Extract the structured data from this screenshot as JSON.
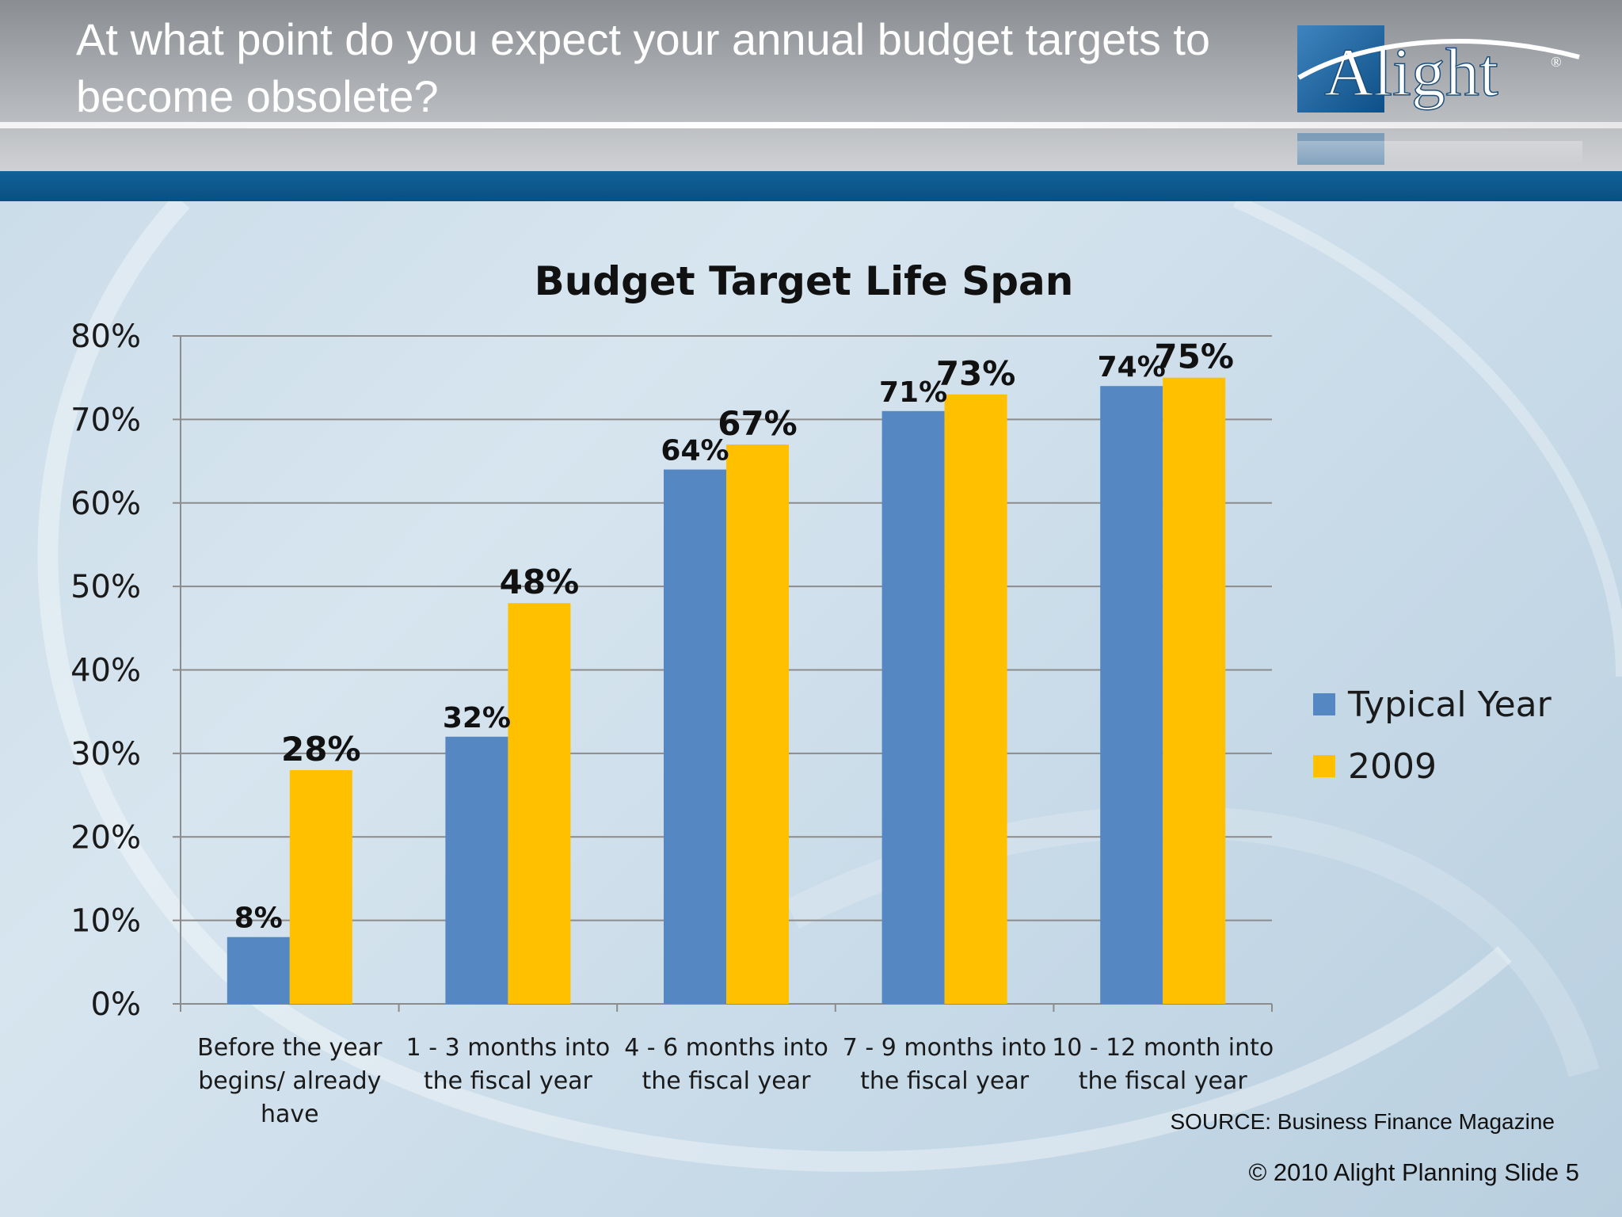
{
  "slide": {
    "title": "At what point do you expect your annual budget targets to become obsolete?",
    "source": "SOURCE: Business Finance Magazine",
    "footer": "© 2010 Alight Planning Slide 5"
  },
  "logo": {
    "text": "Alight",
    "mark": "®"
  },
  "colors": {
    "typical": "#5587c2",
    "y2009": "#ffc000",
    "grid": "#8c8c8c"
  },
  "chart_data": {
    "type": "bar",
    "title": "Budget Target Life Span",
    "categories": [
      [
        "Before the year",
        "begins/ already",
        "have"
      ],
      [
        "1 - 3 months  into",
        "the fiscal year"
      ],
      [
        "4 - 6 months into",
        "the fiscal year"
      ],
      [
        "7 - 9 months into",
        "the fiscal year"
      ],
      [
        "10  - 12 month into",
        "the fiscal year"
      ]
    ],
    "series": [
      {
        "name": "Typical Year",
        "values": [
          8,
          32,
          64,
          71,
          74
        ],
        "labels": [
          "8%",
          "32%",
          "64%",
          "71%",
          "74%"
        ]
      },
      {
        "name": "2009",
        "values": [
          28,
          48,
          67,
          73,
          75
        ],
        "labels": [
          "28%",
          "48%",
          "67%",
          "73%",
          "75%"
        ]
      }
    ],
    "ylim": [
      0,
      80
    ],
    "yticks": [
      "0%",
      "10%",
      "20%",
      "30%",
      "40%",
      "50%",
      "60%",
      "70%",
      "80%"
    ],
    "grid": true,
    "legend_position": "right"
  }
}
